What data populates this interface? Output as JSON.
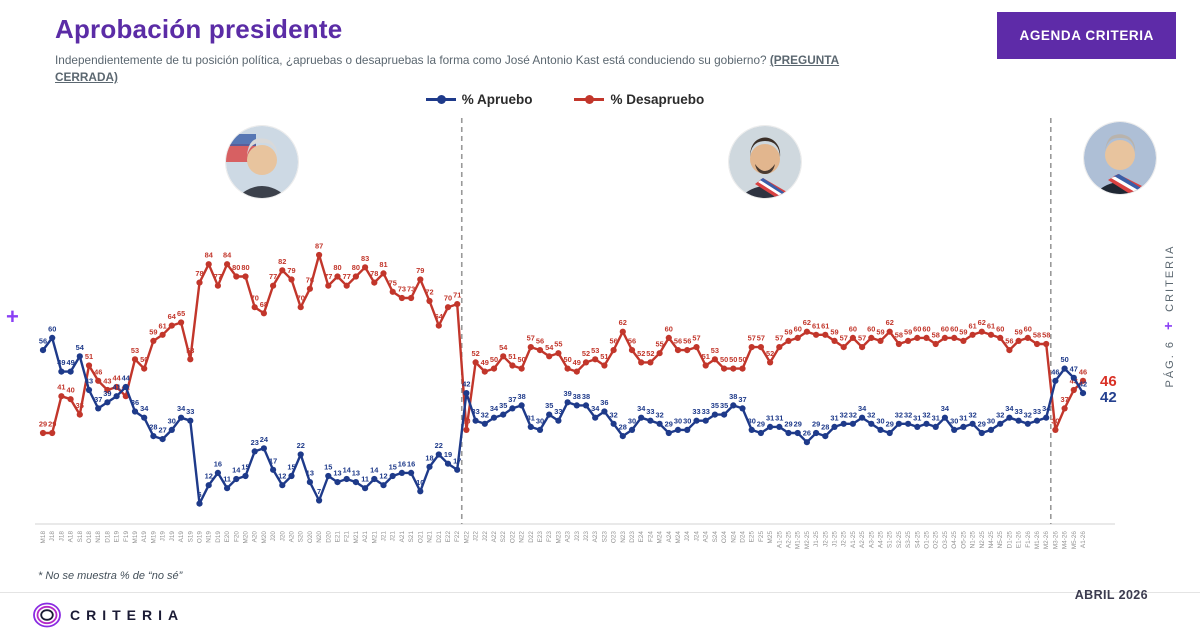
{
  "header": {
    "title": "Aprobación presidente",
    "question": "Independientemente de tu posición política, ¿apruebas o desapruebas la forma como José Antonio Kast está conduciendo su gobierno?",
    "question_tag": "(PREGUNTA CERRADA)",
    "badge": "AGENDA CRITERIA"
  },
  "legend": {
    "apruebo": "% Apruebo",
    "desapruebo": "% Desapruebo"
  },
  "colors": {
    "apruebo": "#1e3a8a",
    "desapruebo": "#c2362b",
    "accent_purple": "#5b2ca6",
    "end_label_red": "#d93025",
    "end_label_blue": "#24408f"
  },
  "avatars": [
    {
      "name": "presidente-periodo-1"
    },
    {
      "name": "presidente-periodo-2"
    },
    {
      "name": "presidente-periodo-3"
    }
  ],
  "chart_data": {
    "type": "line",
    "title": "Aprobación presidente",
    "xlabel": "",
    "ylabel": "%",
    "ylim": [
      0,
      100
    ],
    "grid": false,
    "legend_position": "top",
    "x_labels": [
      "M18",
      "J18",
      "J18",
      "A18",
      "S18",
      "O18",
      "N18",
      "D18",
      "E19",
      "F19",
      "M19",
      "A19",
      "M19",
      "J19",
      "J19",
      "A19",
      "S19",
      "O19",
      "N19",
      "D19",
      "E20",
      "F20",
      "M20",
      "A20",
      "M20",
      "J20",
      "J20",
      "A20",
      "S20",
      "O20",
      "N20",
      "D20",
      "E21",
      "F21",
      "M21",
      "A21",
      "M21",
      "J21",
      "J21",
      "A21",
      "S21",
      "O21",
      "N21",
      "D21",
      "E22",
      "F22",
      "M22",
      "J22",
      "J22",
      "A22",
      "S22",
      "O22",
      "N22",
      "D22",
      "E23",
      "F23",
      "M23",
      "A23",
      "J23",
      "J23",
      "A23",
      "S23",
      "O23",
      "N23",
      "D23",
      "E24",
      "F24",
      "M24",
      "A24",
      "M24",
      "J24",
      "J24",
      "A24",
      "S24",
      "O24",
      "N24",
      "D24",
      "E25",
      "F25",
      "M25",
      "A1-25",
      "A2-25",
      "M1-25",
      "M2-25",
      "J1-25",
      "J2-25",
      "J1-25",
      "J2-25",
      "A1-25",
      "A2-25",
      "A3-25",
      "A4-25",
      "S1-25",
      "S2-25",
      "S3-25",
      "S4-25",
      "O1-25",
      "O2-25",
      "O3-25",
      "O4-25",
      "O5-25",
      "N1-25",
      "N2-25",
      "N4-25",
      "N5-25",
      "D1-25",
      "E1-26",
      "F1-26",
      "M1-26",
      "M2-26",
      "M3-26",
      "M4-26",
      "M5-26",
      "A1-26"
    ],
    "series": [
      {
        "name": "% Apruebo",
        "values": [
          56,
          60,
          49,
          49,
          54,
          43,
          37,
          39,
          41,
          44,
          36,
          34,
          28,
          27,
          30,
          34,
          33,
          6,
          12,
          16,
          11,
          14,
          15,
          23,
          24,
          17,
          12,
          15,
          22,
          13,
          7,
          15,
          13,
          14,
          13,
          11,
          14,
          12,
          15,
          16,
          16,
          10,
          18,
          22,
          19,
          17,
          42,
          33,
          32,
          34,
          35,
          37,
          38,
          31,
          30,
          35,
          33,
          39,
          38,
          38,
          34,
          36,
          32,
          28,
          30,
          34,
          33,
          32,
          29,
          30,
          30,
          33,
          33,
          35,
          35,
          38,
          37,
          30,
          29,
          31,
          31,
          29,
          29,
          26,
          29,
          28,
          31,
          32,
          32,
          34,
          32,
          30,
          29,
          32,
          32,
          31,
          32,
          31,
          34,
          30,
          31,
          32,
          29,
          30,
          32,
          34,
          33,
          32,
          33,
          34,
          46,
          50,
          47,
          42
        ]
      },
      {
        "name": "% Desapruebo",
        "values": [
          29,
          29,
          41,
          40,
          35,
          51,
          46,
          43,
          44,
          41,
          53,
          50,
          59,
          61,
          64,
          65,
          53,
          78,
          84,
          77,
          84,
          80,
          80,
          70,
          68,
          77,
          82,
          79,
          70,
          76,
          87,
          77,
          80,
          77,
          80,
          83,
          78,
          81,
          75,
          73,
          73,
          79,
          72,
          64,
          70,
          71,
          30,
          52,
          49,
          50,
          54,
          51,
          50,
          57,
          56,
          54,
          55,
          50,
          49,
          52,
          53,
          51,
          56,
          62,
          56,
          52,
          52,
          55,
          60,
          56,
          56,
          57,
          51,
          53,
          50,
          50,
          50,
          57,
          57,
          52,
          57,
          59,
          60,
          62,
          61,
          61,
          59,
          57,
          60,
          57,
          60,
          59,
          62,
          58,
          59,
          60,
          60,
          58,
          60,
          60,
          59,
          61,
          62,
          61,
          60,
          56,
          59,
          60,
          58,
          58,
          30,
          37,
          43,
          46
        ]
      }
    ],
    "divider_after_index": [
      45,
      109
    ],
    "end_labels": {
      "desapruebo": "46",
      "apruebo": "42"
    }
  },
  "side": {
    "pag": "PÁG. 6",
    "plus": "+",
    "brand": "CRITERIA"
  },
  "footer": {
    "footnote": "* No se muestra % de “no sé”",
    "brand": "CRITERIA",
    "date": "ABRIL 2026"
  },
  "decoration": {
    "plus_left": "+"
  }
}
